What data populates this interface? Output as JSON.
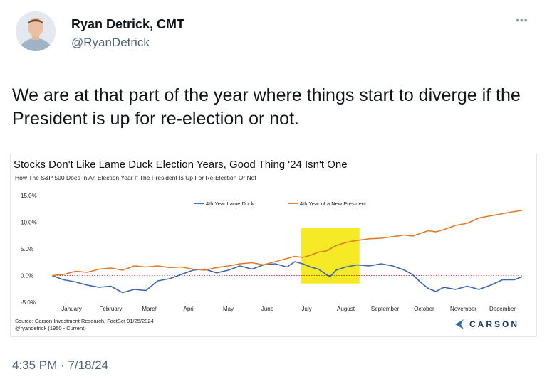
{
  "tweet": {
    "author_name": "Ryan Detrick, CMT",
    "handle": "@RyanDetrick",
    "more_icon": "ellipsis-icon",
    "text": "We are at that part of the year where things start to diverge if the President is up for re-election or not.",
    "timestamp": "4:35 PM · 7/18/24"
  },
  "chart_data": {
    "type": "line",
    "title": "Stocks Don't Like Lame Duck Election Years, Good Thing '24 Isn't One",
    "subtitle": "How The S&P 500 Does In An Election Year If The President Is Up For Re-Election Or Not",
    "x_ticks": [
      "January",
      "February",
      "March",
      "April",
      "May",
      "June",
      "July",
      "August",
      "September",
      "October",
      "November",
      "December"
    ],
    "y_ticks": [
      "15.0%",
      "10.0%",
      "5.0%",
      "0.0%",
      "-5.0%"
    ],
    "ylim": [
      -5,
      15
    ],
    "grid": false,
    "legend_position": "top",
    "highlight": {
      "from_month": 6.35,
      "to_month": 7.85,
      "color": "#f5e600"
    },
    "series": [
      {
        "name": "4th Year Lame Duck",
        "color": "#3a66b5",
        "points": [
          [
            0,
            0
          ],
          [
            0.3,
            -0.8
          ],
          [
            0.6,
            -1.2
          ],
          [
            0.9,
            -1.8
          ],
          [
            1.2,
            -2.2
          ],
          [
            1.5,
            -2.0
          ],
          [
            1.8,
            -3.2
          ],
          [
            2.1,
            -2.6
          ],
          [
            2.4,
            -2.8
          ],
          [
            2.7,
            -1.0
          ],
          [
            3.0,
            -0.6
          ],
          [
            3.3,
            0.2
          ],
          [
            3.6,
            1.0
          ],
          [
            3.9,
            1.2
          ],
          [
            4.2,
            0.5
          ],
          [
            4.5,
            1.0
          ],
          [
            4.8,
            1.8
          ],
          [
            5.1,
            1.2
          ],
          [
            5.4,
            2.0
          ],
          [
            5.7,
            2.2
          ],
          [
            6.0,
            1.6
          ],
          [
            6.2,
            2.6
          ],
          [
            6.4,
            2.2
          ],
          [
            6.6,
            1.6
          ],
          [
            6.8,
            1.2
          ],
          [
            7.0,
            0.2
          ],
          [
            7.1,
            -0.2
          ],
          [
            7.25,
            1.0
          ],
          [
            7.5,
            1.6
          ],
          [
            7.8,
            2.0
          ],
          [
            8.1,
            1.8
          ],
          [
            8.4,
            2.2
          ],
          [
            8.7,
            1.8
          ],
          [
            9.0,
            1.0
          ],
          [
            9.2,
            0.2
          ],
          [
            9.4,
            -1.2
          ],
          [
            9.6,
            -2.4
          ],
          [
            9.8,
            -3.0
          ],
          [
            10.0,
            -2.2
          ],
          [
            10.3,
            -2.6
          ],
          [
            10.6,
            -2.0
          ],
          [
            10.9,
            -2.6
          ],
          [
            11.2,
            -1.8
          ],
          [
            11.5,
            -0.8
          ],
          [
            11.8,
            -0.8
          ],
          [
            12.0,
            -0.2
          ]
        ]
      },
      {
        "name": "4th Year of a New President",
        "color": "#e07b2a",
        "points": [
          [
            0,
            0
          ],
          [
            0.3,
            0.2
          ],
          [
            0.6,
            0.8
          ],
          [
            0.9,
            0.6
          ],
          [
            1.2,
            1.2
          ],
          [
            1.5,
            1.4
          ],
          [
            1.8,
            1.0
          ],
          [
            2.1,
            1.8
          ],
          [
            2.4,
            1.6
          ],
          [
            2.7,
            1.8
          ],
          [
            3.0,
            1.5
          ],
          [
            3.3,
            1.6
          ],
          [
            3.6,
            1.2
          ],
          [
            3.9,
            1.0
          ],
          [
            4.2,
            1.5
          ],
          [
            4.5,
            1.8
          ],
          [
            4.8,
            2.2
          ],
          [
            5.1,
            2.4
          ],
          [
            5.4,
            2.0
          ],
          [
            5.7,
            2.6
          ],
          [
            6.0,
            3.2
          ],
          [
            6.2,
            3.6
          ],
          [
            6.4,
            3.4
          ],
          [
            6.6,
            3.8
          ],
          [
            6.8,
            4.4
          ],
          [
            7.0,
            4.6
          ],
          [
            7.25,
            5.6
          ],
          [
            7.5,
            6.2
          ],
          [
            7.8,
            6.6
          ],
          [
            8.1,
            6.9
          ],
          [
            8.4,
            7.0
          ],
          [
            8.7,
            7.3
          ],
          [
            9.0,
            7.6
          ],
          [
            9.2,
            7.4
          ],
          [
            9.4,
            7.9
          ],
          [
            9.6,
            8.4
          ],
          [
            9.8,
            8.2
          ],
          [
            10.0,
            8.6
          ],
          [
            10.3,
            9.4
          ],
          [
            10.6,
            9.8
          ],
          [
            10.9,
            10.8
          ],
          [
            11.2,
            11.2
          ],
          [
            11.5,
            11.6
          ],
          [
            11.8,
            12.0
          ],
          [
            12.0,
            12.2
          ]
        ]
      }
    ],
    "source_lines": [
      "Source: Carson Investment Research, FactSet 01/25/2024",
      "@ryandetrick    (1950 - Current)"
    ],
    "brand": "CARSON"
  }
}
